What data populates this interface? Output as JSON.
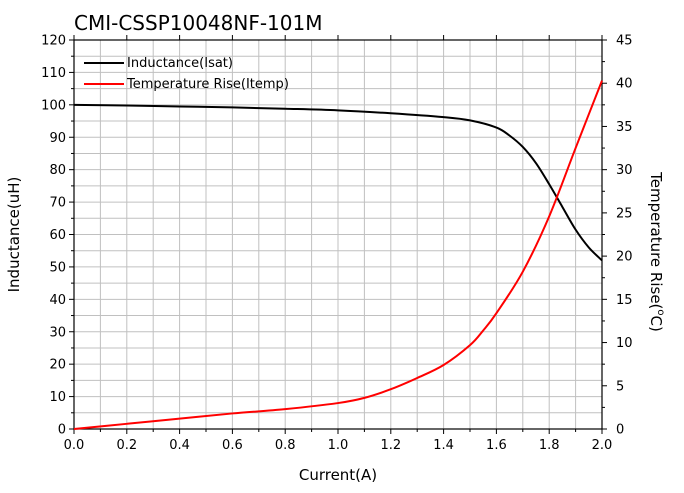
{
  "chart_data": {
    "type": "line",
    "title": "CMI-CSSP10048NF-101M",
    "xlabel": "Current(A)",
    "ylabel": "Inductance(uH)",
    "y2label_main": "Temperature Rise(",
    "y2label_sup": "o",
    "y2label_unit": "C)",
    "xlim": [
      0,
      2.0
    ],
    "ylim": [
      0,
      120
    ],
    "y2lim": [
      0,
      45
    ],
    "xticks": [
      "0.0",
      "0.2",
      "0.4",
      "0.6",
      "0.8",
      "1.0",
      "1.2",
      "1.4",
      "1.6",
      "1.8",
      "2.0"
    ],
    "yticks": [
      "0",
      "10",
      "20",
      "30",
      "40",
      "50",
      "60",
      "70",
      "80",
      "90",
      "100",
      "110",
      "120"
    ],
    "y2ticks": [
      "0",
      "5",
      "10",
      "15",
      "20",
      "25",
      "30",
      "35",
      "40",
      "45"
    ],
    "grid": true,
    "legend_position": "top-left",
    "series": [
      {
        "name": "Inductance(Isat)",
        "color": "#000000",
        "axis": "left",
        "x": [
          0.0,
          0.2,
          0.4,
          0.6,
          0.8,
          1.0,
          1.2,
          1.4,
          1.5,
          1.6,
          1.65,
          1.7,
          1.75,
          1.8,
          1.85,
          1.9,
          1.95,
          2.0
        ],
        "y": [
          100,
          99.8,
          99.5,
          99.2,
          98.8,
          98.3,
          97.4,
          96.2,
          95.2,
          93.0,
          90.5,
          87.0,
          82.0,
          75.5,
          68.5,
          61.5,
          56.0,
          52.0
        ]
      },
      {
        "name": "Temperature Rise(Itemp)",
        "color": "#ff0000",
        "axis": "right",
        "x": [
          0.0,
          0.2,
          0.4,
          0.6,
          0.8,
          1.0,
          1.1,
          1.2,
          1.3,
          1.4,
          1.5,
          1.55,
          1.6,
          1.7,
          1.8,
          1.9,
          2.0
        ],
        "y": [
          0,
          0.6,
          1.2,
          1.8,
          2.3,
          3.0,
          3.6,
          4.6,
          5.9,
          7.4,
          9.7,
          11.4,
          13.4,
          18.2,
          24.6,
          32.5,
          40.3
        ]
      }
    ]
  }
}
